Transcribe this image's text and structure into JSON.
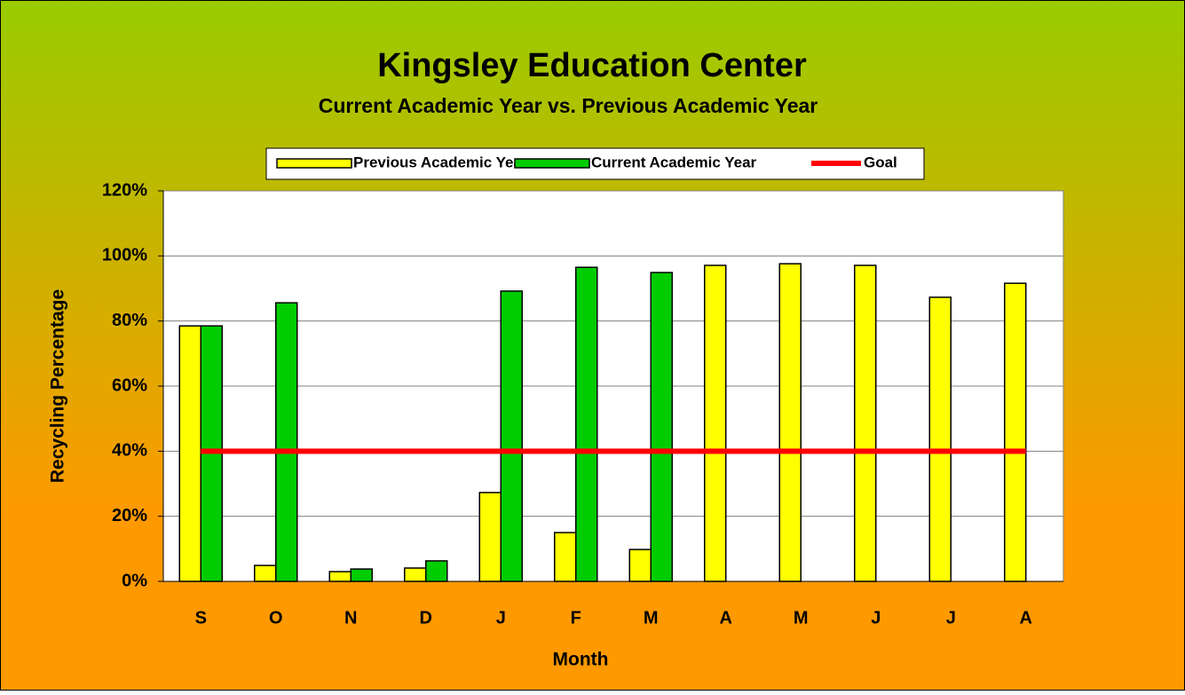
{
  "chart_data": {
    "type": "bar",
    "title": "Kingsley Education Center",
    "subtitle": "Current Academic Year vs. Previous Academic Year",
    "x_label": "Month",
    "y_label": "Recycling Percentage",
    "categories": [
      "S",
      "O",
      "N",
      "D",
      "J",
      "F",
      "M",
      "A",
      "M",
      "J",
      "J",
      "A"
    ],
    "series": [
      {
        "name": "Previous Academic Year",
        "color": "#ffff00",
        "type": "bar",
        "values": [
          78.5,
          4.9,
          3,
          4.1,
          27.3,
          15,
          9.8,
          97.1,
          97.6,
          97.1,
          87.3,
          91.6
        ]
      },
      {
        "name": "Current Academic Year",
        "color": "#00cc00",
        "type": "bar",
        "values": [
          78.5,
          85.6,
          3.8,
          6.3,
          89.2,
          96.5,
          94.9,
          null,
          null,
          null,
          null,
          null
        ]
      },
      {
        "name": "Goal",
        "color": "#ff0000",
        "type": "line",
        "values": [
          40,
          40,
          40,
          40,
          40,
          40,
          40,
          40,
          40,
          40,
          40,
          40
        ]
      }
    ],
    "ylim": [
      0,
      120
    ],
    "yticks": [
      {
        "value": 0,
        "label": "0%"
      },
      {
        "value": 20,
        "label": "20%"
      },
      {
        "value": 40,
        "label": "40%"
      },
      {
        "value": 60,
        "label": "60%"
      },
      {
        "value": 80,
        "label": "80%"
      },
      {
        "value": 100,
        "label": "100%"
      },
      {
        "value": 120,
        "label": "120%"
      }
    ],
    "grid": true,
    "legend": "top"
  }
}
